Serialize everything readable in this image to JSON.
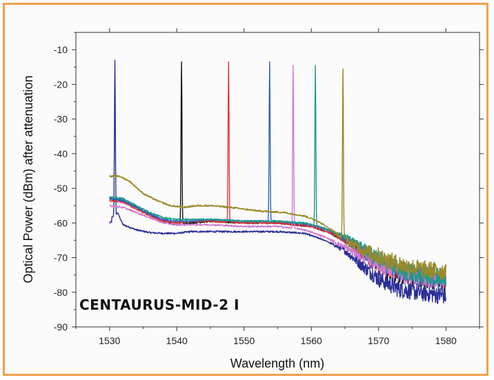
{
  "chart_data": {
    "type": "line",
    "title": "",
    "xlabel": "Wavelength (nm)",
    "ylabel": "Optical Power (dBm) after attenuation",
    "xlim": [
      1525,
      1585
    ],
    "ylim": [
      -90,
      -5
    ],
    "x_ticks": [
      1530,
      1540,
      1550,
      1560,
      1570,
      1580
    ],
    "y_ticks": [
      -90,
      -80,
      -70,
      -60,
      -50,
      -40,
      -30,
      -20,
      -10
    ],
    "grid": false,
    "legend": "none",
    "annotation": "CENTAURUS-MID-2 I",
    "series": [
      {
        "color": "#2a2e96",
        "peak_x": 1530.8,
        "peak_y": -13,
        "points": [
          [
            1530,
            -60
          ],
          [
            1530.4,
            -59.5
          ],
          [
            1531.2,
            -57
          ],
          [
            1532,
            -60.5
          ],
          [
            1534,
            -62
          ],
          [
            1536,
            -62.8
          ],
          [
            1538,
            -63
          ],
          [
            1540,
            -63
          ],
          [
            1542,
            -62.5
          ],
          [
            1545,
            -62.5
          ],
          [
            1550,
            -62.5
          ],
          [
            1555,
            -62.5
          ],
          [
            1559,
            -63
          ],
          [
            1562,
            -65
          ],
          [
            1565,
            -68
          ],
          [
            1568,
            -73
          ],
          [
            1570,
            -76
          ],
          [
            1573,
            -79
          ],
          [
            1576,
            -80
          ],
          [
            1580,
            -81
          ]
        ]
      },
      {
        "color": "#111111",
        "peak_x": 1540.7,
        "peak_y": -13.5,
        "points": [
          [
            1530,
            -53
          ],
          [
            1532,
            -53.5
          ],
          [
            1534,
            -55.5
          ],
          [
            1536,
            -57.5
          ],
          [
            1538,
            -59.5
          ],
          [
            1540,
            -60.5
          ],
          [
            1542,
            -60
          ],
          [
            1545,
            -59.5
          ],
          [
            1550,
            -60
          ],
          [
            1555,
            -60
          ],
          [
            1560,
            -61
          ],
          [
            1563,
            -63
          ],
          [
            1566,
            -66
          ],
          [
            1569,
            -71
          ],
          [
            1572,
            -74.5
          ],
          [
            1575,
            -75.5
          ],
          [
            1578,
            -76.5
          ],
          [
            1580,
            -77
          ]
        ]
      },
      {
        "color": "#e8323a",
        "peak_x": 1547.7,
        "peak_y": -13.5,
        "points": [
          [
            1530,
            -53.5
          ],
          [
            1532,
            -54
          ],
          [
            1534,
            -56
          ],
          [
            1536,
            -58
          ],
          [
            1538,
            -59.5
          ],
          [
            1540,
            -60
          ],
          [
            1542,
            -59.5
          ],
          [
            1545,
            -59.5
          ],
          [
            1550,
            -60
          ],
          [
            1555,
            -60
          ],
          [
            1560,
            -61
          ],
          [
            1563,
            -63
          ],
          [
            1566,
            -66
          ],
          [
            1569,
            -70
          ],
          [
            1572,
            -73
          ],
          [
            1575,
            -74.5
          ],
          [
            1578,
            -75.5
          ],
          [
            1580,
            -76
          ]
        ]
      },
      {
        "color": "#2f62b8",
        "peak_x": 1553.8,
        "peak_y": -13.5,
        "points": [
          [
            1530,
            -53
          ],
          [
            1532,
            -53.5
          ],
          [
            1534,
            -55.5
          ],
          [
            1536,
            -57.5
          ],
          [
            1538,
            -59
          ],
          [
            1540,
            -59.5
          ],
          [
            1542,
            -59.5
          ],
          [
            1545,
            -59
          ],
          [
            1550,
            -59.5
          ],
          [
            1555,
            -59.5
          ],
          [
            1560,
            -60.5
          ],
          [
            1563,
            -62.5
          ],
          [
            1566,
            -65.5
          ],
          [
            1569,
            -70
          ],
          [
            1572,
            -73
          ],
          [
            1575,
            -75
          ],
          [
            1578,
            -76
          ],
          [
            1580,
            -77
          ]
        ]
      },
      {
        "color": "#d07ad0",
        "peak_x": 1557.3,
        "peak_y": -14.5,
        "points": [
          [
            1530,
            -55
          ],
          [
            1532,
            -55.5
          ],
          [
            1534,
            -57
          ],
          [
            1536,
            -58.5
          ],
          [
            1538,
            -60
          ],
          [
            1540,
            -60.5
          ],
          [
            1542,
            -60.5
          ],
          [
            1545,
            -60.5
          ],
          [
            1550,
            -61
          ],
          [
            1555,
            -61
          ],
          [
            1559,
            -62
          ],
          [
            1562,
            -64
          ],
          [
            1565,
            -67
          ],
          [
            1568,
            -70
          ],
          [
            1571,
            -73
          ],
          [
            1574,
            -75
          ],
          [
            1577,
            -76
          ],
          [
            1580,
            -76.5
          ]
        ]
      },
      {
        "color": "#1f9a8c",
        "peak_x": 1560.6,
        "peak_y": -14.5,
        "points": [
          [
            1530,
            -52.5
          ],
          [
            1532,
            -53
          ],
          [
            1534,
            -55
          ],
          [
            1536,
            -57
          ],
          [
            1538,
            -58.5
          ],
          [
            1540,
            -59
          ],
          [
            1542,
            -59
          ],
          [
            1545,
            -59
          ],
          [
            1550,
            -59.5
          ],
          [
            1555,
            -59.5
          ],
          [
            1559,
            -60
          ],
          [
            1562,
            -61.5
          ],
          [
            1565,
            -64
          ],
          [
            1568,
            -68
          ],
          [
            1571,
            -71.5
          ],
          [
            1574,
            -74
          ],
          [
            1577,
            -75
          ],
          [
            1580,
            -75.5
          ]
        ]
      },
      {
        "color": "#9a8a2a",
        "peak_x": 1564.7,
        "peak_y": -15.5,
        "points": [
          [
            1530,
            -46.5
          ],
          [
            1531.5,
            -46.5
          ],
          [
            1533,
            -48
          ],
          [
            1535,
            -51.5
          ],
          [
            1537,
            -53.5
          ],
          [
            1539,
            -55
          ],
          [
            1541,
            -55.5
          ],
          [
            1543,
            -55
          ],
          [
            1545,
            -55
          ],
          [
            1548,
            -55.5
          ],
          [
            1552,
            -56.5
          ],
          [
            1556,
            -57
          ],
          [
            1559,
            -58
          ],
          [
            1561,
            -59.5
          ],
          [
            1563,
            -62
          ],
          [
            1564.3,
            -64
          ],
          [
            1566,
            -66
          ],
          [
            1568,
            -68
          ],
          [
            1571,
            -70.5
          ],
          [
            1574,
            -72.5
          ],
          [
            1577,
            -73.5
          ],
          [
            1580,
            -74
          ]
        ]
      }
    ]
  }
}
